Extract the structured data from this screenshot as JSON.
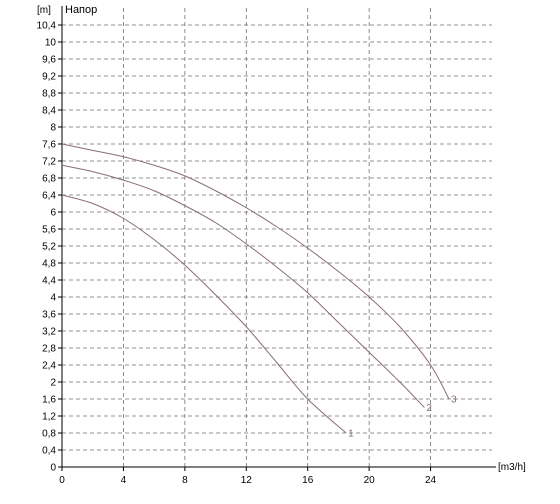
{
  "chart_data": {
    "type": "line",
    "title": "Напор",
    "ylabel": "[m]",
    "xlabel": "[m3/h]",
    "xlim": [
      0,
      28
    ],
    "ylim": [
      0,
      10.8
    ],
    "x_ticks": [
      0,
      4,
      8,
      12,
      16,
      20,
      24
    ],
    "x_tick_labels": [
      "0",
      "4",
      "8",
      "12",
      "16",
      "20",
      "24"
    ],
    "y_ticks": [
      0,
      0.4,
      0.8,
      1.2,
      1.6,
      2,
      2.4,
      2.8,
      3.2,
      3.6,
      4,
      4.4,
      4.8,
      5.2,
      5.6,
      6,
      6.4,
      6.8,
      7.2,
      7.6,
      8,
      8.4,
      8.8,
      9.2,
      9.6,
      10,
      10.4
    ],
    "y_tick_labels": [
      "0",
      "0,4",
      "0,8",
      "1,2",
      "1,6",
      "2",
      "2,4",
      "2,8",
      "3,2",
      "3,6",
      "4",
      "4,4",
      "4,8",
      "5,2",
      "5,6",
      "6",
      "6,4",
      "6,8",
      "7,2",
      "7,6",
      "8",
      "8,4",
      "8,8",
      "9,2",
      "9,6",
      "10",
      "10,4"
    ],
    "grid": true,
    "colors": {
      "curve": "#8a6e6e",
      "grid": "#707070",
      "axis": "#000000"
    },
    "series": [
      {
        "name": "1",
        "x": [
          0,
          2,
          4,
          6,
          8,
          10,
          12,
          14,
          16,
          18.5
        ],
        "y": [
          6.4,
          6.2,
          5.85,
          5.35,
          4.75,
          4.05,
          3.3,
          2.45,
          1.6,
          0.8
        ]
      },
      {
        "name": "2",
        "x": [
          0,
          2,
          4,
          6,
          8,
          10,
          12,
          14,
          16,
          18,
          20,
          22,
          23.6
        ],
        "y": [
          7.1,
          6.95,
          6.75,
          6.5,
          6.15,
          5.75,
          5.25,
          4.7,
          4.1,
          3.4,
          2.7,
          2.0,
          1.4
        ]
      },
      {
        "name": "3",
        "x": [
          0,
          2,
          4,
          6,
          8,
          10,
          12,
          14,
          16,
          18,
          20,
          22,
          24,
          25.2
        ],
        "y": [
          7.6,
          7.45,
          7.3,
          7.1,
          6.85,
          6.5,
          6.1,
          5.65,
          5.15,
          4.6,
          4.0,
          3.3,
          2.4,
          1.6
        ]
      }
    ]
  }
}
